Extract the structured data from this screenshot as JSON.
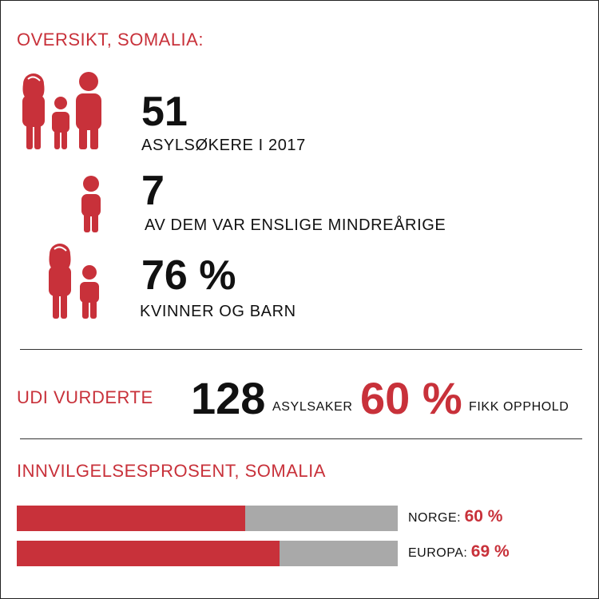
{
  "colors": {
    "accent": "#c8313a",
    "text": "#111111",
    "bar_background": "#a9a9a9",
    "rule": "#333333"
  },
  "overview": {
    "title": "OVERSIKT, SOMALIA:",
    "stats": [
      {
        "icon": "family-icon",
        "value": "51",
        "caption": "ASYLSØKERE I 2017"
      },
      {
        "icon": "child-icon",
        "value": "7",
        "caption": "AV DEM VAR ENSLIGE MINDREÅRIGE"
      },
      {
        "icon": "woman-child-icon",
        "value": "76 %",
        "caption": "KVINNER OG BARN"
      }
    ]
  },
  "udi": {
    "label": "UDI VURDERTE",
    "cases_value": "128",
    "cases_label": "ASYLSAKER",
    "granted_value": "60 %",
    "granted_label": "FIKK OPPHOLD"
  },
  "approval": {
    "title": "INNVILGELSESPROSENT, SOMALIA",
    "bars": [
      {
        "label": "NORGE:",
        "value_text": "60 %",
        "percent": 60
      },
      {
        "label": "EUROPA:",
        "value_text": "69 %",
        "percent": 69
      }
    ]
  }
}
